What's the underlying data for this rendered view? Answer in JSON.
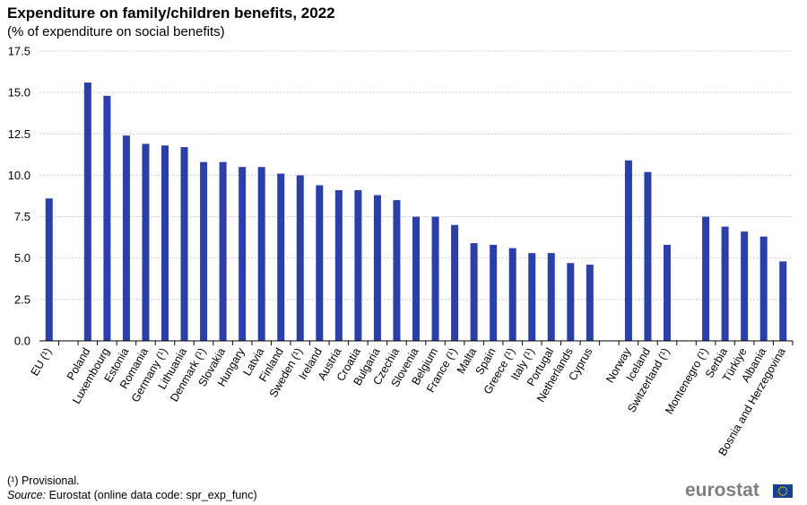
{
  "header": {
    "title": "Expenditure on family/children benefits, 2022",
    "subtitle": "(% of expenditure on social benefits)"
  },
  "footer": {
    "footnote": "(¹) Provisional.",
    "source_label": "Source:",
    "source_text": " Eurostat (online data code: spr_exp_func)",
    "brand": "eurostat"
  },
  "colors": {
    "bar": "#2a3fa8",
    "grid": "#c8c8c8",
    "axis": "#000000",
    "flag": "#164194"
  },
  "icons": {
    "logo_flag": "eu-flag-icon"
  },
  "chart_data": {
    "type": "bar",
    "title": "Expenditure on family/children benefits, 2022",
    "subtitle": "(% of expenditure on social benefits)",
    "xlabel": "",
    "ylabel": "",
    "ylim": [
      0,
      17.5
    ],
    "yticks": [
      0.0,
      2.5,
      5.0,
      7.5,
      10.0,
      12.5,
      15.0,
      17.5
    ],
    "ytick_labels": [
      "0.0",
      "2.5",
      "5.0",
      "7.5",
      "10.0",
      "12.5",
      "15.0",
      "17.5"
    ],
    "grid": true,
    "legend": "none",
    "categories": [
      "EU (¹)",
      "",
      "Poland",
      "Luxembourg",
      "Estonia",
      "Romania",
      "Germany (¹)",
      "Lithuania",
      "Denmark (¹)",
      "Slovakia",
      "Hungary",
      "Latvia",
      "Finland",
      "Sweden (¹)",
      "Ireland",
      "Austria",
      "Croatia",
      "Bulgaria",
      "Czechia",
      "Slovenia",
      "Belgium",
      "France (¹)",
      "Malta",
      "Spain",
      "Greece (¹)",
      "Italy (¹)",
      "Portugal",
      "Netherlands",
      "Cyprus",
      "",
      "Norway",
      "Iceland",
      "Switzerland (¹)",
      "",
      "Montenegro (¹)",
      "Serbia",
      "Türkiye",
      "Albania",
      "Bosnia and Herzegovina"
    ],
    "values": [
      8.6,
      null,
      15.6,
      14.8,
      12.4,
      11.9,
      11.8,
      11.7,
      10.8,
      10.8,
      10.5,
      10.5,
      10.1,
      10.0,
      9.4,
      9.1,
      9.1,
      8.8,
      8.5,
      7.5,
      7.5,
      7.0,
      5.9,
      5.8,
      5.6,
      5.3,
      5.3,
      4.7,
      4.6,
      null,
      10.9,
      10.2,
      5.8,
      null,
      7.5,
      6.9,
      6.6,
      6.3,
      4.8
    ]
  }
}
